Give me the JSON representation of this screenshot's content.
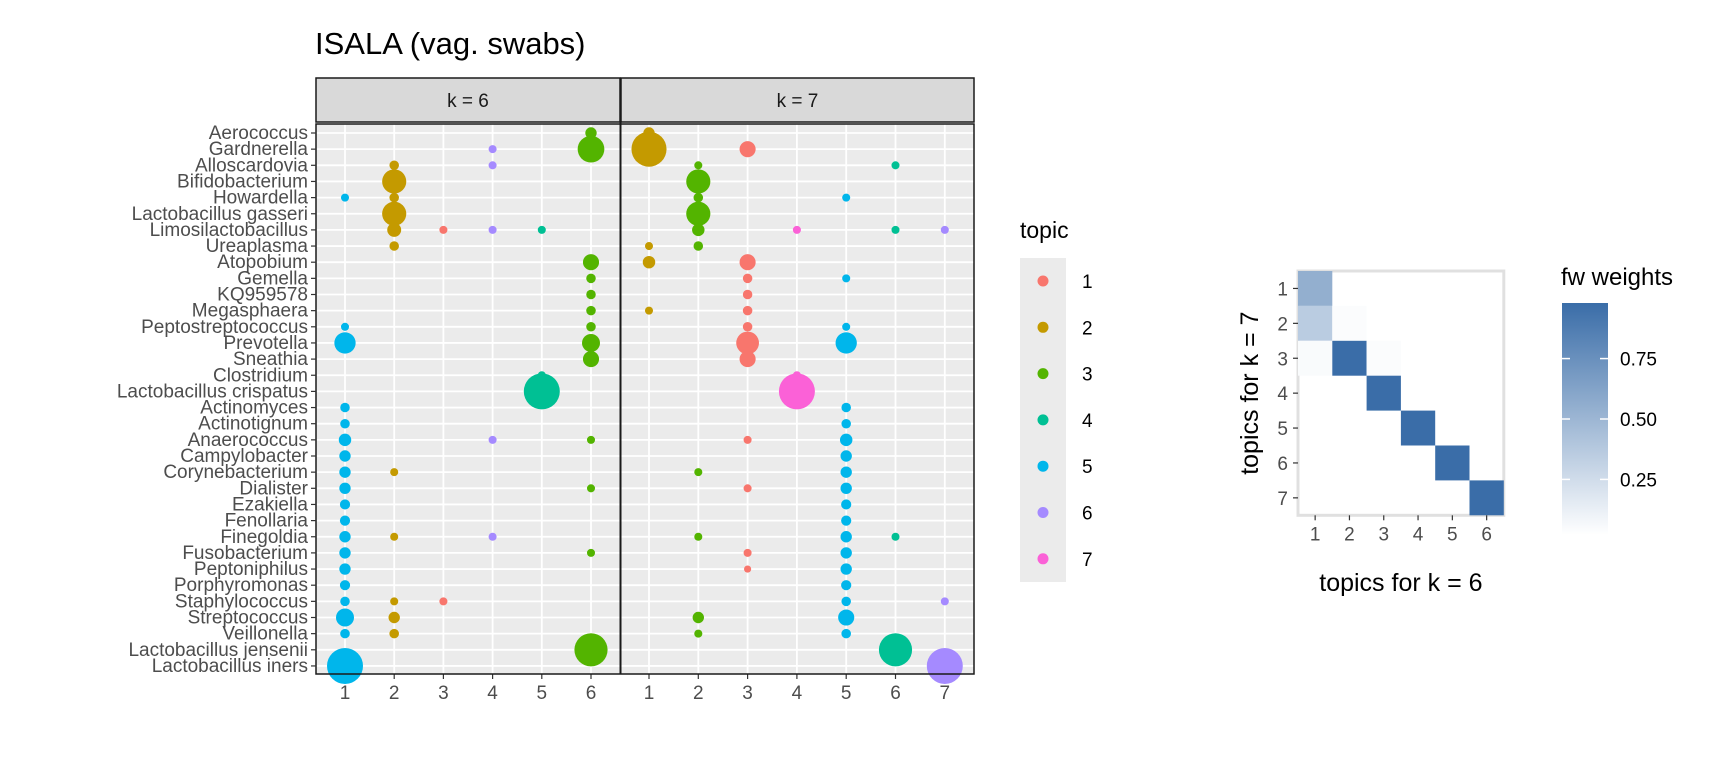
{
  "chart_data": [
    {
      "type": "scatter",
      "title": "ISALA (vag. swabs)",
      "taxa": [
        "Aerococcus",
        "Gardnerella",
        "Alloscardovia",
        "Bifidobacterium",
        "Howardella",
        "Lactobacillus gasseri",
        "Limosilactobacillus",
        "Ureaplasma",
        "Atopobium",
        "Gemella",
        "KQ959578",
        "Megasphaera",
        "Peptostreptococcus",
        "Prevotella",
        "Sneathia",
        "Clostridium",
        "Lactobacillus crispatus",
        "Actinomyces",
        "Actinotignum",
        "Anaerococcus",
        "Campylobacter",
        "Corynebacterium",
        "Dialister",
        "Ezakiella",
        "Fenollaria",
        "Finegoldia",
        "Fusobacterium",
        "Peptoniphilus",
        "Porphyromonas",
        "Staphylococcus",
        "Streptococcus",
        "Veillonella",
        "Lactobacillus jensenii",
        "Lactobacillus iners"
      ],
      "panels": [
        {
          "label": "k = 6",
          "k": 6,
          "topic_of_column": [
            5,
            2,
            1,
            6,
            4,
            3
          ],
          "points": [
            {
              "taxon": "Aerococcus",
              "topic": 3,
              "size": 0.1
            },
            {
              "taxon": "Gardnerella",
              "topic": 3,
              "size": 0.55
            },
            {
              "taxon": "Gardnerella",
              "topic": 6,
              "size": 0.05
            },
            {
              "taxon": "Alloscardovia",
              "topic": 2,
              "size": 0.07
            },
            {
              "taxon": "Alloscardovia",
              "topic": 6,
              "size": 0.05
            },
            {
              "taxon": "Bifidobacterium",
              "topic": 2,
              "size": 0.45
            },
            {
              "taxon": "Howardella",
              "topic": 2,
              "size": 0.07
            },
            {
              "taxon": "Howardella",
              "topic": 5,
              "size": 0.05
            },
            {
              "taxon": "Lactobacillus gasseri",
              "topic": 2,
              "size": 0.45
            },
            {
              "taxon": "Limosilactobacillus",
              "topic": 1,
              "size": 0.05
            },
            {
              "taxon": "Limosilactobacillus",
              "topic": 2,
              "size": 0.15
            },
            {
              "taxon": "Limosilactobacillus",
              "topic": 4,
              "size": 0.05
            },
            {
              "taxon": "Limosilactobacillus",
              "topic": 6,
              "size": 0.05
            },
            {
              "taxon": "Ureaplasma",
              "topic": 2,
              "size": 0.07
            },
            {
              "taxon": "Atopobium",
              "topic": 3,
              "size": 0.2
            },
            {
              "taxon": "Gemella",
              "topic": 3,
              "size": 0.07
            },
            {
              "taxon": "KQ959578",
              "topic": 3,
              "size": 0.07
            },
            {
              "taxon": "Megasphaera",
              "topic": 3,
              "size": 0.07
            },
            {
              "taxon": "Peptostreptococcus",
              "topic": 3,
              "size": 0.07
            },
            {
              "taxon": "Peptostreptococcus",
              "topic": 5,
              "size": 0.05
            },
            {
              "taxon": "Prevotella",
              "topic": 3,
              "size": 0.25
            },
            {
              "taxon": "Prevotella",
              "topic": 5,
              "size": 0.35
            },
            {
              "taxon": "Sneathia",
              "topic": 3,
              "size": 0.2
            },
            {
              "taxon": "Clostridium",
              "topic": 4,
              "size": 0.05
            },
            {
              "taxon": "Lactobacillus crispatus",
              "topic": 4,
              "size": 1.0
            },
            {
              "taxon": "Actinomyces",
              "topic": 5,
              "size": 0.07
            },
            {
              "taxon": "Actinotignum",
              "topic": 5,
              "size": 0.07
            },
            {
              "taxon": "Anaerococcus",
              "topic": 3,
              "size": 0.05
            },
            {
              "taxon": "Anaerococcus",
              "topic": 5,
              "size": 0.12
            },
            {
              "taxon": "Anaerococcus",
              "topic": 6,
              "size": 0.05
            },
            {
              "taxon": "Campylobacter",
              "topic": 5,
              "size": 0.1
            },
            {
              "taxon": "Corynebacterium",
              "topic": 2,
              "size": 0.05
            },
            {
              "taxon": "Corynebacterium",
              "topic": 5,
              "size": 0.1
            },
            {
              "taxon": "Dialister",
              "topic": 3,
              "size": 0.05
            },
            {
              "taxon": "Dialister",
              "topic": 5,
              "size": 0.1
            },
            {
              "taxon": "Ezakiella",
              "topic": 5,
              "size": 0.08
            },
            {
              "taxon": "Fenollaria",
              "topic": 5,
              "size": 0.08
            },
            {
              "taxon": "Finegoldia",
              "topic": 2,
              "size": 0.05
            },
            {
              "taxon": "Finegoldia",
              "topic": 5,
              "size": 0.1
            },
            {
              "taxon": "Finegoldia",
              "topic": 6,
              "size": 0.05
            },
            {
              "taxon": "Fusobacterium",
              "topic": 3,
              "size": 0.05
            },
            {
              "taxon": "Fusobacterium",
              "topic": 5,
              "size": 0.1
            },
            {
              "taxon": "Peptoniphilus",
              "topic": 5,
              "size": 0.1
            },
            {
              "taxon": "Porphyromonas",
              "topic": 5,
              "size": 0.08
            },
            {
              "taxon": "Staphylococcus",
              "topic": 1,
              "size": 0.05
            },
            {
              "taxon": "Staphylococcus",
              "topic": 2,
              "size": 0.05
            },
            {
              "taxon": "Staphylococcus",
              "topic": 5,
              "size": 0.07
            },
            {
              "taxon": "Streptococcus",
              "topic": 2,
              "size": 0.1
            },
            {
              "taxon": "Streptococcus",
              "topic": 5,
              "size": 0.25
            },
            {
              "taxon": "Veillonella",
              "topic": 2,
              "size": 0.07
            },
            {
              "taxon": "Veillonella",
              "topic": 5,
              "size": 0.07
            },
            {
              "taxon": "Lactobacillus jensenii",
              "topic": 3,
              "size": 0.85
            },
            {
              "taxon": "Lactobacillus iners",
              "topic": 5,
              "size": 1.0
            }
          ]
        },
        {
          "label": "k = 7",
          "k": 7,
          "topic_of_column": [
            2,
            3,
            1,
            7,
            5,
            4,
            6
          ],
          "points": [
            {
              "taxon": "Aerococcus",
              "topic": 2,
              "size": 0.1
            },
            {
              "taxon": "Gardnerella",
              "topic": 2,
              "size": 0.95
            },
            {
              "taxon": "Gardnerella",
              "topic": 1,
              "size": 0.2
            },
            {
              "taxon": "Alloscardovia",
              "topic": 3,
              "size": 0.05
            },
            {
              "taxon": "Alloscardovia",
              "topic": 4,
              "size": 0.05
            },
            {
              "taxon": "Bifidobacterium",
              "topic": 3,
              "size": 0.45
            },
            {
              "taxon": "Howardella",
              "topic": 3,
              "size": 0.07
            },
            {
              "taxon": "Howardella",
              "topic": 5,
              "size": 0.05
            },
            {
              "taxon": "Lactobacillus gasseri",
              "topic": 3,
              "size": 0.45
            },
            {
              "taxon": "Limosilactobacillus",
              "topic": 3,
              "size": 0.12
            },
            {
              "taxon": "Limosilactobacillus",
              "topic": 7,
              "size": 0.05
            },
            {
              "taxon": "Limosilactobacillus",
              "topic": 4,
              "size": 0.05
            },
            {
              "taxon": "Limosilactobacillus",
              "topic": 6,
              "size": 0.05
            },
            {
              "taxon": "Ureaplasma",
              "topic": 2,
              "size": 0.05
            },
            {
              "taxon": "Ureaplasma",
              "topic": 3,
              "size": 0.07
            },
            {
              "taxon": "Atopobium",
              "topic": 2,
              "size": 0.12
            },
            {
              "taxon": "Atopobium",
              "topic": 1,
              "size": 0.2
            },
            {
              "taxon": "Gemella",
              "topic": 1,
              "size": 0.07
            },
            {
              "taxon": "Gemella",
              "topic": 5,
              "size": 0.05
            },
            {
              "taxon": "KQ959578",
              "topic": 1,
              "size": 0.07
            },
            {
              "taxon": "Megasphaera",
              "topic": 2,
              "size": 0.05
            },
            {
              "taxon": "Megasphaera",
              "topic": 1,
              "size": 0.07
            },
            {
              "taxon": "Peptostreptococcus",
              "topic": 1,
              "size": 0.07
            },
            {
              "taxon": "Peptostreptococcus",
              "topic": 5,
              "size": 0.05
            },
            {
              "taxon": "Prevotella",
              "topic": 1,
              "size": 0.4
            },
            {
              "taxon": "Prevotella",
              "topic": 5,
              "size": 0.35
            },
            {
              "taxon": "Sneathia",
              "topic": 1,
              "size": 0.2
            },
            {
              "taxon": "Clostridium",
              "topic": 7,
              "size": 0.05
            },
            {
              "taxon": "Lactobacillus crispatus",
              "topic": 7,
              "size": 1.0
            },
            {
              "taxon": "Actinomyces",
              "topic": 5,
              "size": 0.07
            },
            {
              "taxon": "Actinotignum",
              "topic": 5,
              "size": 0.07
            },
            {
              "taxon": "Anaerococcus",
              "topic": 1,
              "size": 0.05
            },
            {
              "taxon": "Anaerococcus",
              "topic": 5,
              "size": 0.12
            },
            {
              "taxon": "Campylobacter",
              "topic": 5,
              "size": 0.1
            },
            {
              "taxon": "Corynebacterium",
              "topic": 3,
              "size": 0.05
            },
            {
              "taxon": "Corynebacterium",
              "topic": 5,
              "size": 0.1
            },
            {
              "taxon": "Dialister",
              "topic": 1,
              "size": 0.05
            },
            {
              "taxon": "Dialister",
              "topic": 5,
              "size": 0.1
            },
            {
              "taxon": "Ezakiella",
              "topic": 5,
              "size": 0.08
            },
            {
              "taxon": "Fenollaria",
              "topic": 5,
              "size": 0.08
            },
            {
              "taxon": "Finegoldia",
              "topic": 3,
              "size": 0.05
            },
            {
              "taxon": "Finegoldia",
              "topic": 5,
              "size": 0.1
            },
            {
              "taxon": "Finegoldia",
              "topic": 4,
              "size": 0.05
            },
            {
              "taxon": "Fusobacterium",
              "topic": 1,
              "size": 0.05
            },
            {
              "taxon": "Fusobacterium",
              "topic": 5,
              "size": 0.1
            },
            {
              "taxon": "Peptoniphilus",
              "topic": 1,
              "size": 0.04
            },
            {
              "taxon": "Peptoniphilus",
              "topic": 5,
              "size": 0.1
            },
            {
              "taxon": "Porphyromonas",
              "topic": 5,
              "size": 0.08
            },
            {
              "taxon": "Staphylococcus",
              "topic": 5,
              "size": 0.07
            },
            {
              "taxon": "Staphylococcus",
              "topic": 6,
              "size": 0.05
            },
            {
              "taxon": "Streptococcus",
              "topic": 3,
              "size": 0.1
            },
            {
              "taxon": "Streptococcus",
              "topic": 5,
              "size": 0.2
            },
            {
              "taxon": "Veillonella",
              "topic": 3,
              "size": 0.05
            },
            {
              "taxon": "Veillonella",
              "topic": 5,
              "size": 0.07
            },
            {
              "taxon": "Lactobacillus jensenii",
              "topic": 4,
              "size": 0.85
            },
            {
              "taxon": "Lactobacillus iners",
              "topic": 6,
              "size": 1.0
            }
          ]
        }
      ],
      "legend": {
        "title": "topic",
        "placement": "right",
        "entries": [
          {
            "label": "1",
            "color": "#F8766D"
          },
          {
            "label": "2",
            "color": "#C49A00"
          },
          {
            "label": "3",
            "color": "#53B400"
          },
          {
            "label": "4",
            "color": "#00C094"
          },
          {
            "label": "5",
            "color": "#00B6EB"
          },
          {
            "label": "6",
            "color": "#A58AFF"
          },
          {
            "label": "7",
            "color": "#FB61D7"
          }
        ]
      },
      "panel_background": "#EBEBEB",
      "strip_background": "#D9D9D9",
      "grid": true
    },
    {
      "type": "heatmap",
      "xlabel": "topics for k = 6",
      "ylabel": "topics for k = 7",
      "x_categories": [
        "1",
        "2",
        "3",
        "4",
        "5",
        "6"
      ],
      "y_categories": [
        "1",
        "2",
        "3",
        "4",
        "5",
        "6",
        "7"
      ],
      "values": [
        [
          0.55,
          0,
          0,
          0,
          0,
          0
        ],
        [
          0.35,
          0.02,
          0,
          0,
          0,
          0
        ],
        [
          0.03,
          1.0,
          0.02,
          0,
          0,
          0
        ],
        [
          0,
          0,
          1.0,
          0,
          0,
          0
        ],
        [
          0,
          0,
          0,
          1.0,
          0,
          0
        ],
        [
          0,
          0,
          0,
          0,
          1.0,
          0
        ],
        [
          0,
          0,
          0,
          0,
          0,
          1.0
        ]
      ],
      "color_low": "#FFFFFF",
      "color_high": "#3A6DA8",
      "legend": {
        "title": "fw weights",
        "ticks": [
          "0.25",
          "0.50",
          "0.75"
        ],
        "tick_values": [
          0.25,
          0.5,
          0.75
        ],
        "range": [
          0,
          1
        ]
      }
    }
  ]
}
